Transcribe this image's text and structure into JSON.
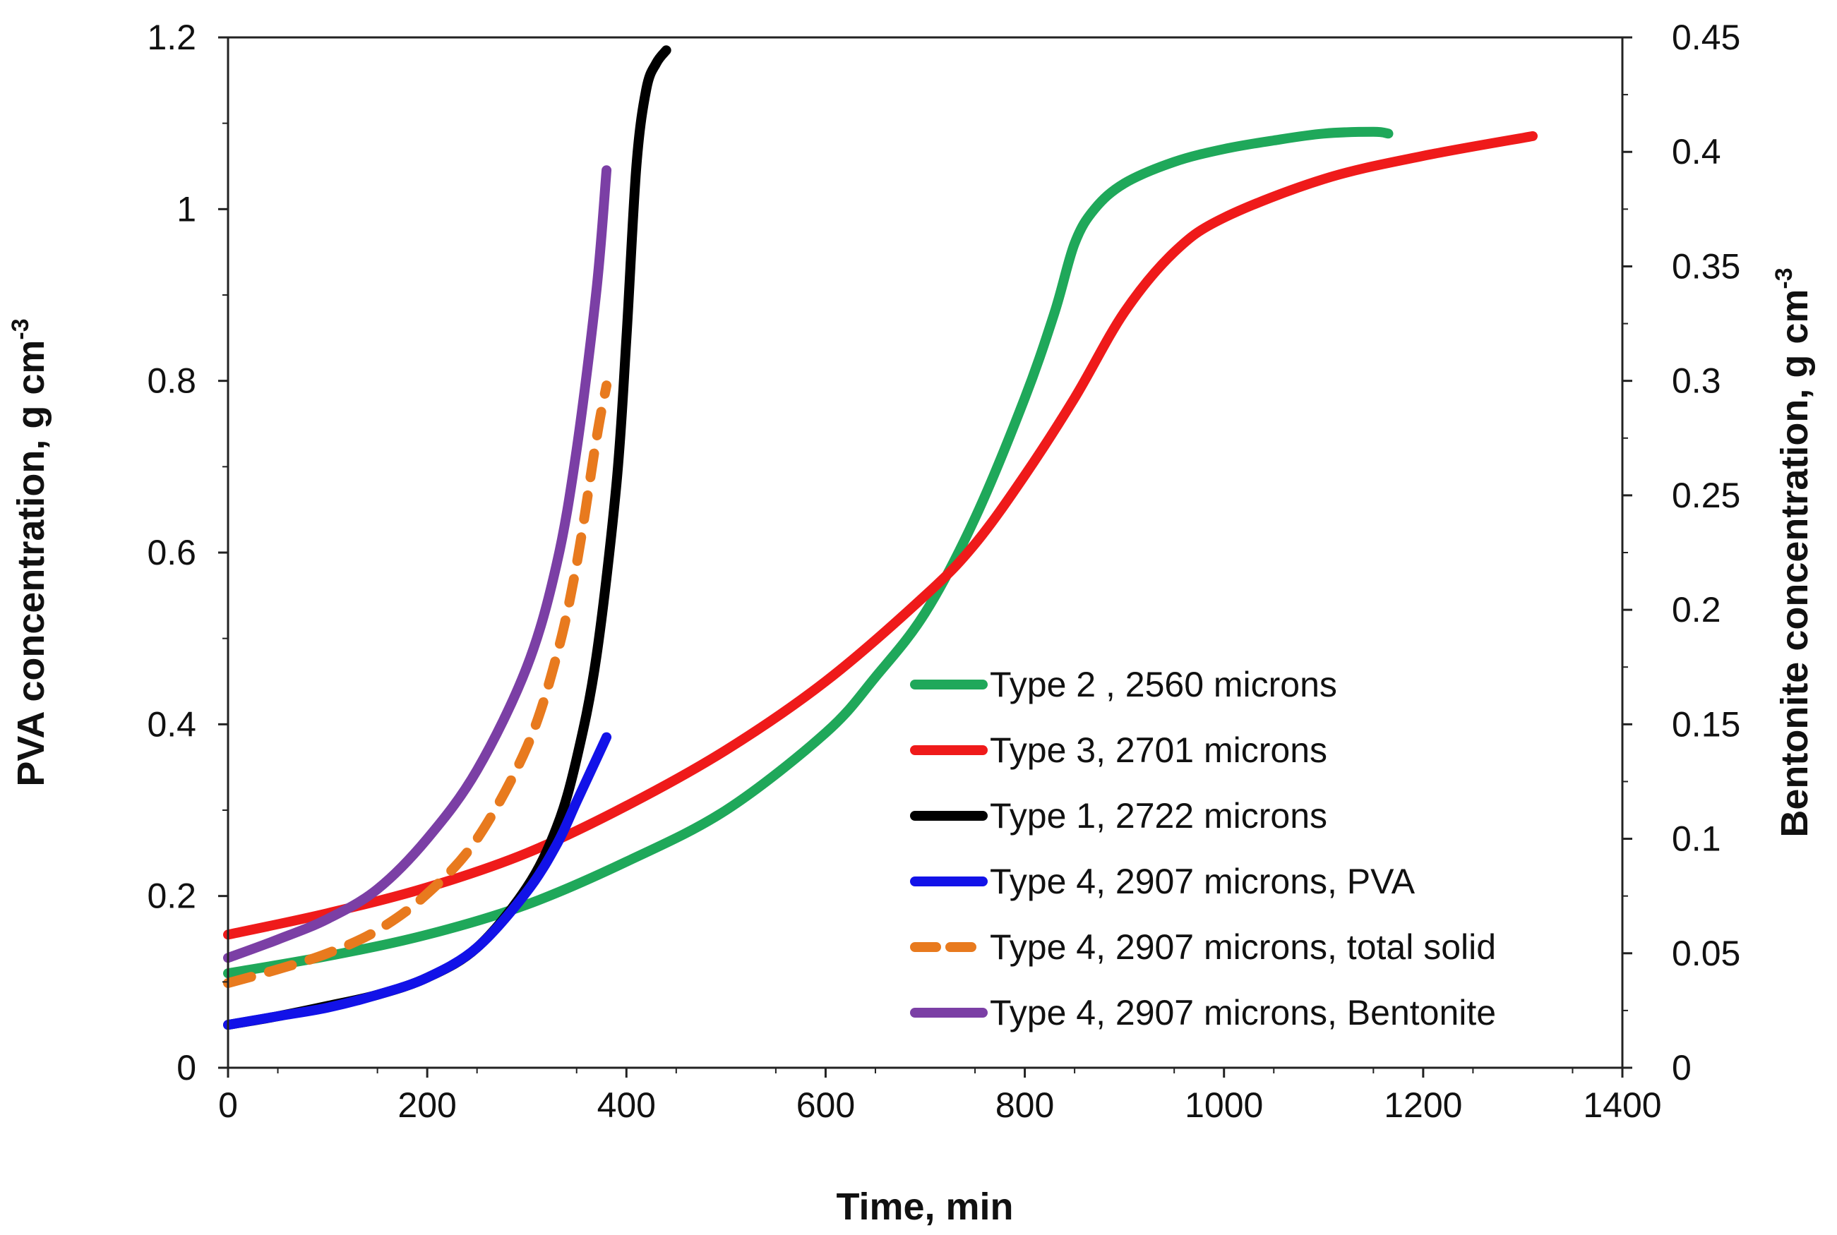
{
  "chart_data": {
    "type": "line",
    "title": "",
    "xlabel": "Time, min",
    "ylabel": "PVA concentration, g cm",
    "ylabel_sup": "-3",
    "y2label": "Bentonite concentration, g cm",
    "y2label_sup": "-3",
    "xlim": [
      0,
      1400
    ],
    "ylim": [
      0,
      1.2
    ],
    "y2lim": [
      0,
      0.45
    ],
    "xticks": [
      "0",
      "200",
      "400",
      "600",
      "800",
      "1000",
      "1200",
      "1400"
    ],
    "yticks": [
      "0",
      "0.2",
      "0.4",
      "0.6",
      "0.8",
      "1",
      "1.2"
    ],
    "y2ticks": [
      "0",
      "0.05",
      "0.1",
      "0.15",
      "0.2",
      "0.25",
      "0.3",
      "0.35",
      "0.4",
      "0.45"
    ],
    "grid": false,
    "legend_position": "bottom-right",
    "series": [
      {
        "name": "Type 2 , 2560 microns",
        "color": "#1fa85a",
        "dashed": false,
        "axis": "left",
        "x": [
          0,
          100,
          200,
          300,
          400,
          500,
          600,
          650,
          700,
          750,
          800,
          830,
          850,
          870,
          900,
          950,
          1000,
          1050,
          1100,
          1150,
          1165
        ],
        "y": [
          0.11,
          0.13,
          0.155,
          0.19,
          0.24,
          0.3,
          0.39,
          0.455,
          0.53,
          0.64,
          0.78,
          0.88,
          0.96,
          1.0,
          1.03,
          1.055,
          1.07,
          1.08,
          1.088,
          1.09,
          1.088
        ]
      },
      {
        "name": "Type 3, 2701 microns",
        "color": "#ef1a1a",
        "dashed": false,
        "axis": "left",
        "x": [
          0,
          100,
          200,
          300,
          400,
          500,
          600,
          700,
          750,
          800,
          850,
          900,
          950,
          1000,
          1100,
          1200,
          1310
        ],
        "y": [
          0.155,
          0.18,
          0.21,
          0.25,
          0.305,
          0.37,
          0.45,
          0.55,
          0.61,
          0.69,
          0.78,
          0.88,
          0.95,
          0.99,
          1.035,
          1.062,
          1.085
        ]
      },
      {
        "name": "Type 1, 2722 microns",
        "color": "#000000",
        "dashed": false,
        "axis": "left",
        "x": [
          0,
          50,
          100,
          150,
          200,
          250,
          300,
          330,
          350,
          370,
          390,
          400,
          410,
          420,
          430,
          440
        ],
        "y": [
          0.05,
          0.06,
          0.072,
          0.085,
          0.105,
          0.14,
          0.21,
          0.28,
          0.36,
          0.48,
          0.68,
          0.85,
          1.05,
          1.14,
          1.17,
          1.185
        ]
      },
      {
        "name": "Type 4, 2907 microns, PVA",
        "color": "#1212e8",
        "dashed": false,
        "axis": "left",
        "x": [
          0,
          50,
          100,
          150,
          200,
          250,
          300,
          330,
          350,
          370,
          380
        ],
        "y": [
          0.05,
          0.06,
          0.07,
          0.085,
          0.105,
          0.14,
          0.205,
          0.26,
          0.31,
          0.36,
          0.385
        ]
      },
      {
        "name": "Type 4, 2907 microns, total solid",
        "color": "#e87a1e",
        "dashed": true,
        "axis": "right",
        "x": [
          0,
          50,
          100,
          150,
          200,
          250,
          300,
          330,
          350,
          370,
          380
        ],
        "y": [
          0.037,
          0.043,
          0.05,
          0.06,
          0.076,
          0.1,
          0.14,
          0.18,
          0.22,
          0.275,
          0.298
        ]
      },
      {
        "name": "Type 4, 2907 microns, Bentonite",
        "color": "#7b3fa5",
        "dashed": false,
        "axis": "right",
        "x": [
          0,
          50,
          100,
          150,
          200,
          250,
          300,
          330,
          350,
          370,
          380
        ],
        "y": [
          0.048,
          0.056,
          0.065,
          0.078,
          0.1,
          0.13,
          0.175,
          0.22,
          0.27,
          0.34,
          0.392
        ]
      }
    ]
  }
}
